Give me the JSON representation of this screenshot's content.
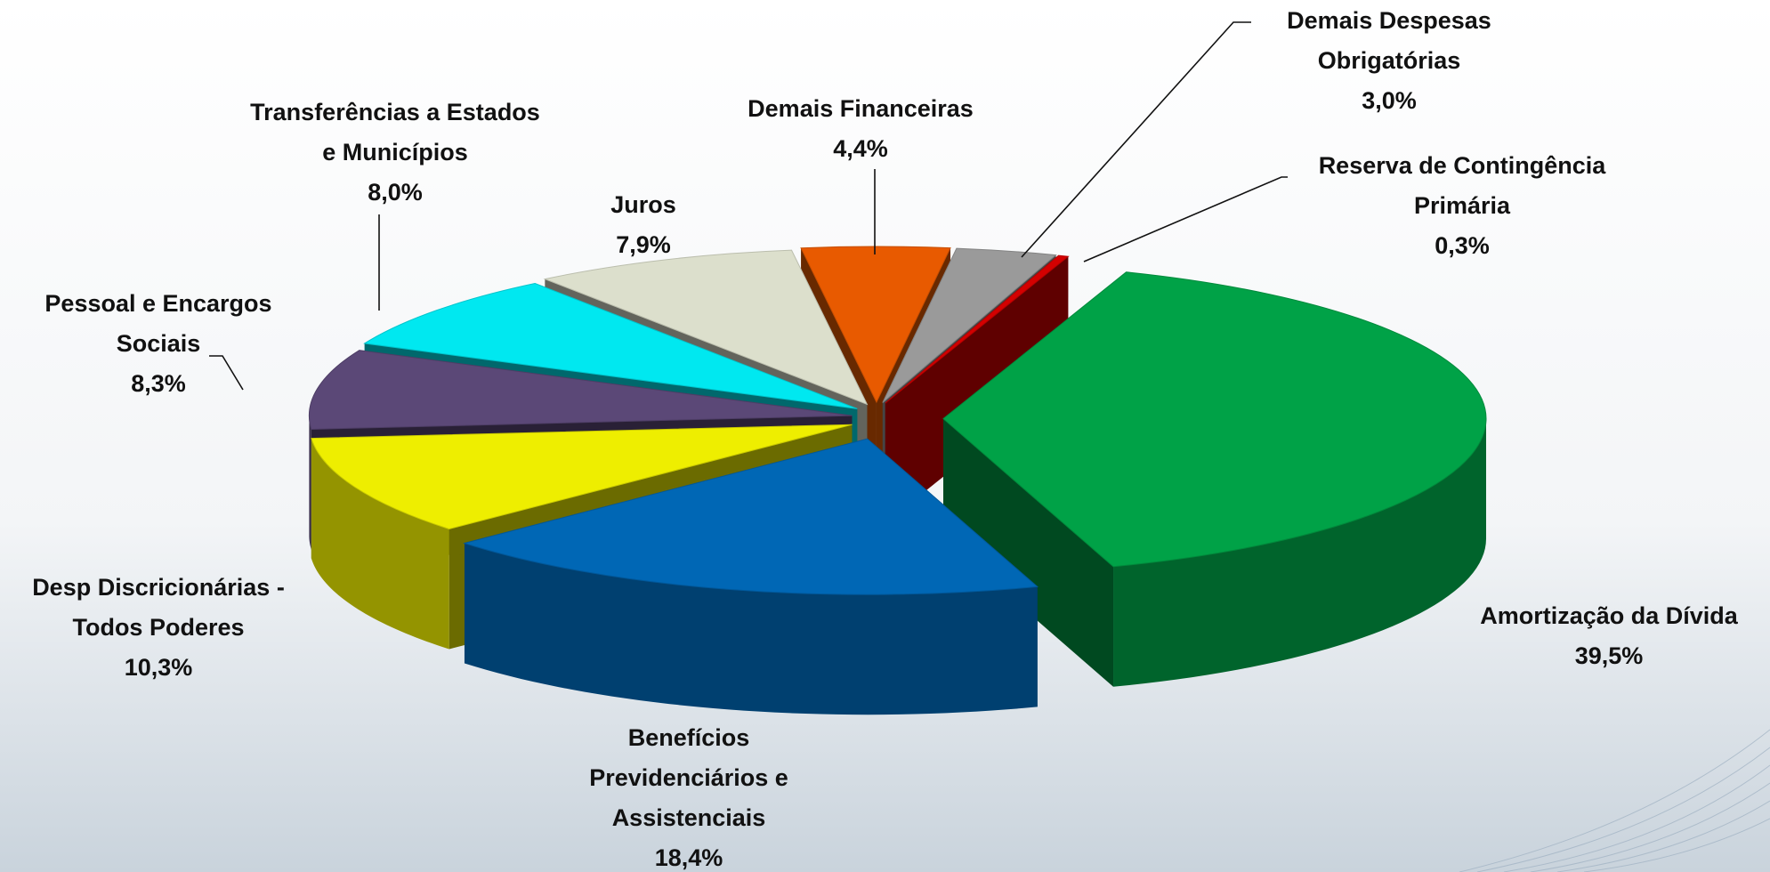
{
  "chart_data": {
    "type": "pie3d",
    "categories": [
      "Demais Financeiras",
      "Demais Despesas\nObrigatórias",
      "Reserva de Contingência\nPrimária",
      "Amortização da Dívida",
      "Benefícios\nPrevidenciários  e\nAssistenciais",
      "Desp Discricionárias -\nTodos Poderes",
      "Pessoal e Encargos\nSociais",
      "Transferências a Estados\ne Municípios",
      "Juros"
    ],
    "values": [
      4.4,
      3.0,
      0.3,
      39.5,
      18.4,
      10.3,
      8.3,
      8.0,
      7.9
    ],
    "value_labels": [
      "4,4%",
      "3,0%",
      "0,3%",
      "39,5%",
      "18,4%",
      "10,3%",
      "8,3%",
      "8,0%",
      "7,9%"
    ],
    "colors": [
      "#e85a00",
      "#9a9a9a",
      "#d40000",
      "#00a247",
      "#0067b5",
      "#eeee00",
      "#5b4877",
      "#00e8f0",
      "#dcdfcc"
    ]
  }
}
